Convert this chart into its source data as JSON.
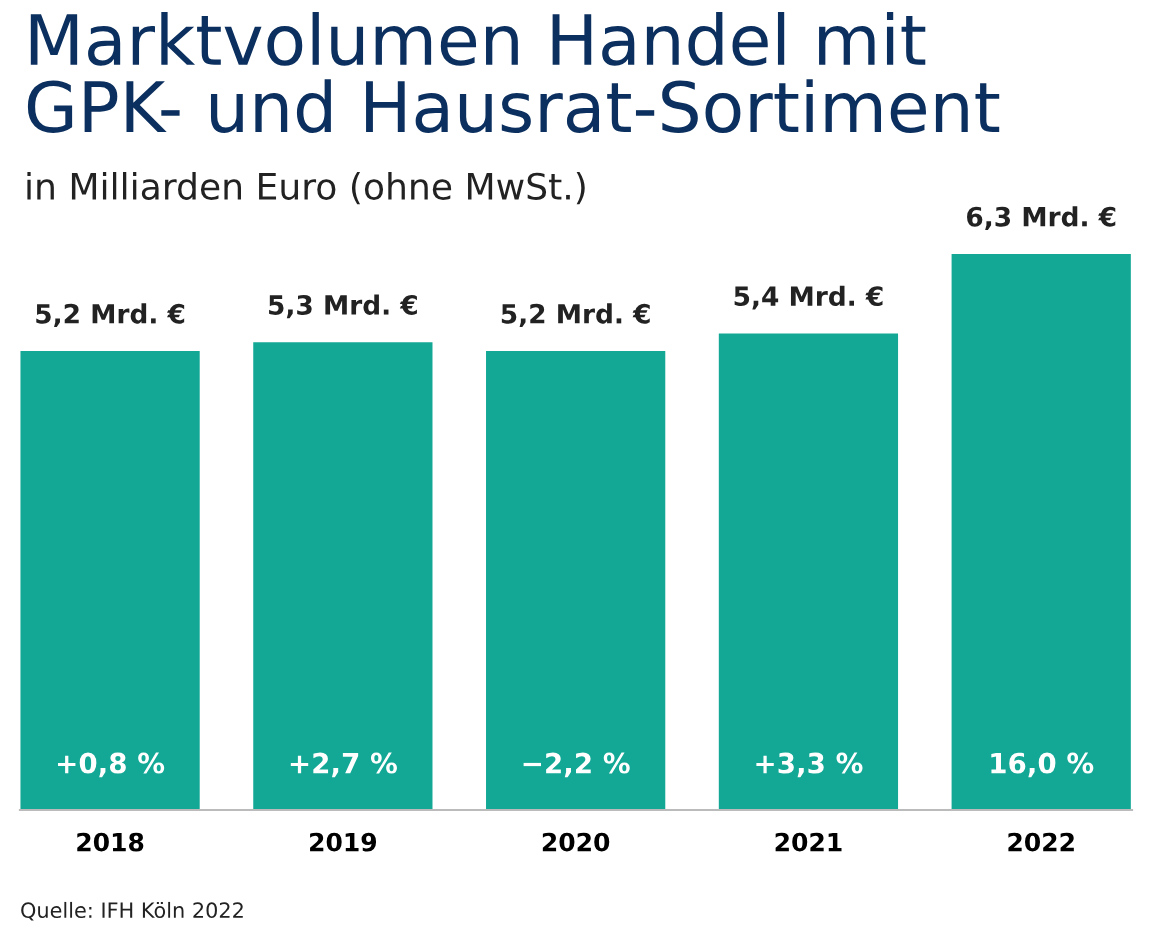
{
  "chart_data": {
    "type": "bar",
    "title": "Marktvolumen Handel mit\nGPK- und Hausrat-Sortiment",
    "subtitle": "in Milliarden Euro (ohne MwSt.)",
    "categories": [
      "2018",
      "2019",
      "2020",
      "2021",
      "2022"
    ],
    "values": [
      5.2,
      5.3,
      5.2,
      5.4,
      6.3
    ],
    "value_labels": [
      "5,2 Mrd. €",
      "5,3 Mrd. €",
      "5,2 Mrd. €",
      "5,4 Mrd. €",
      "6,3 Mrd. €"
    ],
    "color": "#12a895",
    "annotations": [
      "+0,8 %",
      "+2,7 %",
      "−2,2 %",
      "+3,3 %",
      "16,0 %",
      "Quelle: IFH Köln 2022"
    ],
    "grid": false,
    "legend": false
  }
}
